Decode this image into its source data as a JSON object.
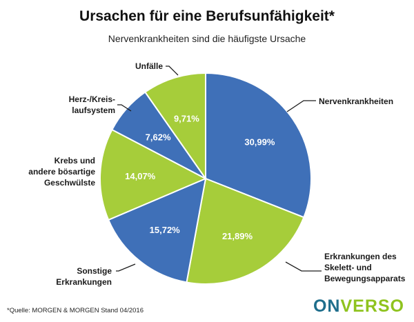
{
  "header": {
    "title": "Ursachen für eine Berufsunfähigkeit*",
    "subtitle": "Nervenkrankheiten sind die häufigste Ursache"
  },
  "footer": {
    "source": "*Quelle: MORGEN & MORGEN Stand 04/2016",
    "logo_part1": "ON",
    "logo_part2": "VERSO"
  },
  "colors": {
    "blue": "#3f70b8",
    "green": "#a6cd3a",
    "logo_blue": "#1f6e8c",
    "logo_green": "#8fc31f"
  },
  "chart_data": {
    "type": "pie",
    "title": "Ursachen für eine Berufsunfähigkeit*",
    "subtitle": "Nervenkrankheiten sind die häufigste Ursache",
    "slices": [
      {
        "label": "Nervenkrankheiten",
        "value": 30.99,
        "display": "30,99%",
        "color": "#3f70b8"
      },
      {
        "label": "Erkrankungen des Skelett- und Bewegungsapparats",
        "value": 21.89,
        "display": "21,89%",
        "color": "#a6cd3a"
      },
      {
        "label": "Sonstige Erkrankungen",
        "value": 15.72,
        "display": "15,72%",
        "color": "#3f70b8"
      },
      {
        "label": "Krebs und andere bösartige Geschwülste",
        "value": 14.07,
        "display": "14,07%",
        "color": "#a6cd3a"
      },
      {
        "label": "Herz-/Kreislaufsystem",
        "value": 7.62,
        "display": "7,62%",
        "color": "#3f70b8"
      },
      {
        "label": "Unfälle",
        "value": 9.71,
        "display": "9,71%",
        "color": "#a6cd3a"
      }
    ],
    "labels": {
      "nerven": [
        "Nervenkrankheiten"
      ],
      "skelett": [
        "Erkrankungen des",
        "Skelett- und",
        "Bewegungsapparats"
      ],
      "sonstige": [
        "Sonstige",
        "Erkrankungen"
      ],
      "krebs": [
        "Krebs und",
        "andere bösartige",
        "Geschwülste"
      ],
      "herz": [
        "Herz-/Kreis-",
        "laufsystem"
      ],
      "unfaelle": [
        "Unfälle"
      ]
    }
  }
}
